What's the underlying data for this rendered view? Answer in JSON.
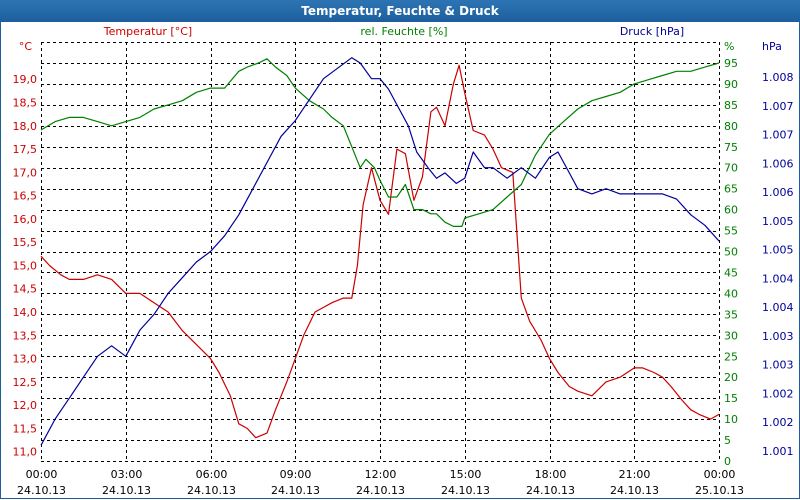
{
  "window": {
    "title": "Temperatur, Feuchte & Druck"
  },
  "colors": {
    "temp": "#cc0000",
    "hum": "#008000",
    "press": "#000099",
    "grid": "#000000",
    "bg": "#ffffff"
  },
  "chart_data": {
    "type": "line",
    "title": "Temperatur, Feuchte & Druck",
    "grid": true,
    "x_ticks": [
      {
        "time": "00:00",
        "date": "24.10.13"
      },
      {
        "time": "03:00",
        "date": "24.10.13"
      },
      {
        "time": "06:00",
        "date": "24.10.13"
      },
      {
        "time": "09:00",
        "date": "24.10.13"
      },
      {
        "time": "12:00",
        "date": "24.10.13"
      },
      {
        "time": "15:00",
        "date": "24.10.13"
      },
      {
        "time": "18:00",
        "date": "24.10.13"
      },
      {
        "time": "21:00",
        "date": "24.10.13"
      },
      {
        "time": "00:00",
        "date": "25.10.13"
      }
    ],
    "x_range_hours": [
      0,
      24
    ],
    "axes": {
      "temp": {
        "label": "Temperatur [°C]",
        "unit": "°C",
        "range": [
          10.8,
          19.8
        ],
        "ticks": [
          "11,0",
          "11,5",
          "12,0",
          "12,5",
          "13,0",
          "13,5",
          "14,0",
          "14,5",
          "15,0",
          "15,5",
          "16,0",
          "16,5",
          "17,0",
          "17,5",
          "18,0",
          "18,5",
          "19,0"
        ]
      },
      "hum": {
        "label": "rel. Feuchte [%]",
        "unit": "%",
        "range": [
          0,
          100
        ],
        "ticks": [
          "0",
          "5",
          "10",
          "15",
          "20",
          "25",
          "30",
          "35",
          "40",
          "45",
          "50",
          "55",
          "60",
          "65",
          "70",
          "75",
          "80",
          "85",
          "90",
          "95"
        ]
      },
      "press": {
        "label": "Druck [hPa]",
        "unit": "hPa",
        "range": [
          1000.7,
          1008.7
        ],
        "ticks": [
          "1.001",
          "1.002",
          "1.002",
          "1.003",
          "1.003",
          "1.004",
          "1.004",
          "1.005",
          "1.005",
          "1.006",
          "1.006",
          "1.007",
          "1.007",
          "1.008"
        ]
      }
    },
    "series": [
      {
        "name": "Temperatur [°C]",
        "axis": "temp",
        "x": [
          0,
          0.3,
          0.7,
          1.0,
          1.5,
          2.0,
          2.5,
          3.0,
          3.5,
          4.0,
          4.5,
          5.0,
          5.5,
          6.0,
          6.3,
          6.7,
          7.0,
          7.3,
          7.6,
          8.0,
          8.3,
          8.7,
          9.0,
          9.3,
          9.7,
          10.0,
          10.3,
          10.7,
          11.0,
          11.2,
          11.4,
          11.7,
          12.0,
          12.3,
          12.6,
          12.9,
          13.2,
          13.5,
          13.8,
          14.0,
          14.3,
          14.6,
          14.8,
          15.0,
          15.3,
          15.7,
          16.0,
          16.3,
          16.7,
          17.0,
          17.3,
          17.7,
          18.0,
          18.3,
          18.7,
          19.0,
          19.5,
          20.0,
          20.5,
          21.0,
          21.3,
          21.7,
          22.0,
          22.3,
          22.7,
          23.0,
          23.3,
          23.7,
          24.0
        ],
        "y": [
          15.2,
          15.0,
          14.8,
          14.7,
          14.7,
          14.8,
          14.7,
          14.4,
          14.4,
          14.2,
          14.0,
          13.6,
          13.3,
          13.0,
          12.7,
          12.2,
          11.6,
          11.5,
          11.3,
          11.4,
          11.9,
          12.5,
          13.0,
          13.5,
          14.0,
          14.1,
          14.2,
          14.3,
          14.3,
          15.0,
          16.3,
          17.1,
          16.4,
          16.1,
          17.5,
          17.4,
          16.4,
          16.9,
          18.3,
          18.4,
          18.0,
          18.9,
          19.3,
          18.7,
          17.9,
          17.8,
          17.5,
          17.1,
          17.0,
          14.3,
          13.8,
          13.4,
          13.0,
          12.7,
          12.4,
          12.3,
          12.2,
          12.5,
          12.6,
          12.8,
          12.8,
          12.7,
          12.6,
          12.4,
          12.1,
          11.9,
          11.8,
          11.7,
          11.8
        ]
      },
      {
        "name": "rel. Feuchte [%]",
        "axis": "hum",
        "x": [
          0,
          0.5,
          1.0,
          1.5,
          2.0,
          2.5,
          3.0,
          3.5,
          4.0,
          4.5,
          5.0,
          5.5,
          6.0,
          6.5,
          7.0,
          7.3,
          7.7,
          8.0,
          8.3,
          8.7,
          9.0,
          9.5,
          10.0,
          10.3,
          10.7,
          11.0,
          11.3,
          11.5,
          11.8,
          12.0,
          12.3,
          12.6,
          12.9,
          13.2,
          13.5,
          13.8,
          14.0,
          14.3,
          14.6,
          14.9,
          15.0,
          15.5,
          16.0,
          16.5,
          17.0,
          17.5,
          18.0,
          18.5,
          19.0,
          19.5,
          20.0,
          20.5,
          21.0,
          21.5,
          22.0,
          22.5,
          23.0,
          23.5,
          24.0
        ],
        "y": [
          79,
          81,
          82,
          82,
          81,
          80,
          81,
          82,
          84,
          85,
          86,
          88,
          89,
          89,
          93,
          94,
          95,
          96,
          94,
          92,
          89,
          86,
          84,
          82,
          80,
          75,
          70,
          72,
          70,
          67,
          63,
          63,
          66,
          60,
          60,
          59,
          59,
          57,
          56,
          56,
          58,
          59,
          60,
          63,
          66,
          73,
          78,
          81,
          84,
          86,
          87,
          88,
          90,
          91,
          92,
          93,
          93,
          94,
          95
        ]
      },
      {
        "name": "Druck [hPa]",
        "axis": "press",
        "x": [
          0,
          0.5,
          1.0,
          1.5,
          2.0,
          2.5,
          3.0,
          3.5,
          4.0,
          4.5,
          5.0,
          5.5,
          6.0,
          6.5,
          7.0,
          7.5,
          8.0,
          8.5,
          9.0,
          9.5,
          10.0,
          10.5,
          11.0,
          11.3,
          11.7,
          12.0,
          12.3,
          12.7,
          13.0,
          13.3,
          13.7,
          14.0,
          14.3,
          14.7,
          15.0,
          15.3,
          15.7,
          16.0,
          16.5,
          17.0,
          17.5,
          18.0,
          18.3,
          18.7,
          19.0,
          19.5,
          20.0,
          20.5,
          21.0,
          21.5,
          22.0,
          22.5,
          23.0,
          23.5,
          24.0
        ],
        "y": [
          1001.0,
          1001.5,
          1001.9,
          1002.3,
          1002.7,
          1002.9,
          1002.7,
          1003.2,
          1003.5,
          1003.9,
          1004.2,
          1004.5,
          1004.7,
          1005.0,
          1005.4,
          1005.9,
          1006.4,
          1006.9,
          1007.2,
          1007.6,
          1008.0,
          1008.2,
          1008.4,
          1008.3,
          1008.0,
          1008.0,
          1007.8,
          1007.4,
          1007.1,
          1006.6,
          1006.3,
          1006.1,
          1006.2,
          1006.0,
          1006.1,
          1006.6,
          1006.3,
          1006.3,
          1006.1,
          1006.3,
          1006.1,
          1006.5,
          1006.6,
          1006.2,
          1005.9,
          1005.8,
          1005.9,
          1005.8,
          1005.8,
          1005.8,
          1005.8,
          1005.7,
          1005.4,
          1005.2,
          1004.9
        ]
      }
    ]
  }
}
